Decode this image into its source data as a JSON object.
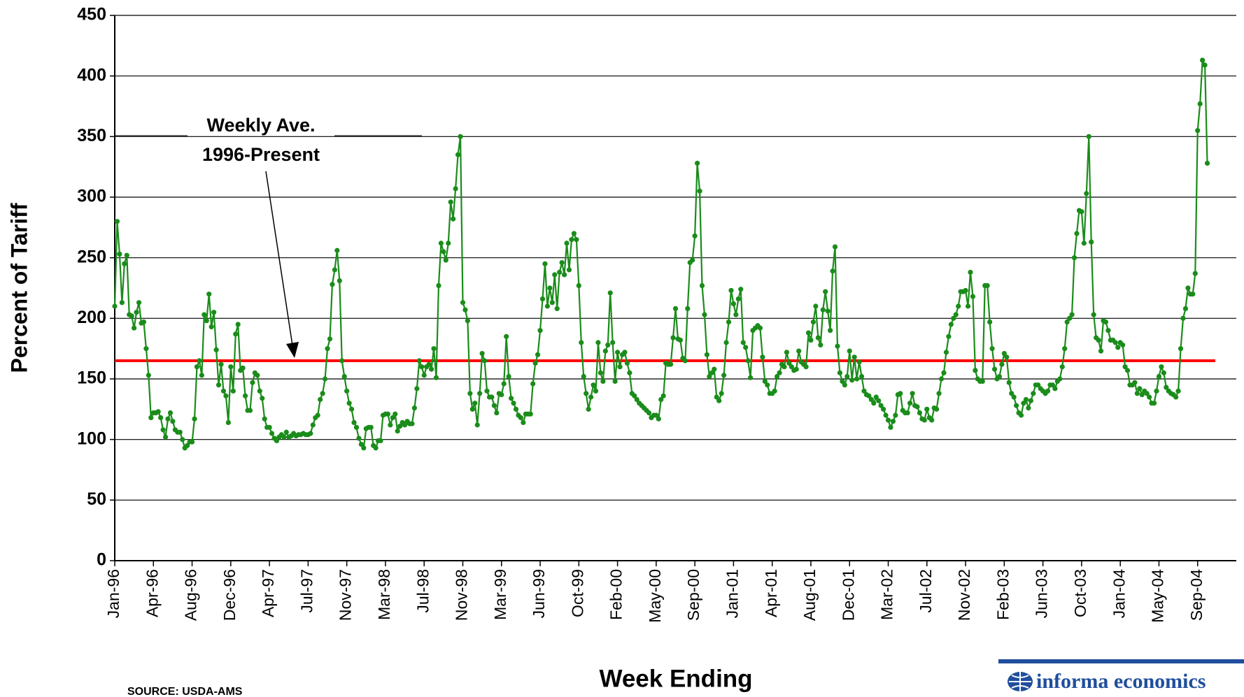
{
  "chart_data": {
    "type": "line",
    "y_label": "Percent of Tariff",
    "x_label": "Week Ending",
    "source": "SOURCE:  USDA-AMS",
    "logo": "informa economics",
    "annotation": [
      "Weekly Ave.",
      "1996-Present"
    ],
    "average": {
      "value": 165,
      "color": "#ff0000"
    },
    "ylim": [
      0,
      450
    ],
    "yticks": [
      0,
      50,
      100,
      150,
      200,
      250,
      300,
      350,
      400,
      450
    ],
    "grid": true,
    "categories": [
      "Jan-96",
      null,
      null,
      null,
      null,
      null,
      null,
      null,
      null,
      null,
      null,
      null,
      null,
      null,
      null,
      null,
      "Apr-96",
      null,
      null,
      null,
      null,
      null,
      null,
      null,
      null,
      null,
      null,
      null,
      null,
      null,
      null,
      null,
      "Aug-96",
      null,
      null,
      null,
      null,
      null,
      null,
      null,
      null,
      null,
      null,
      null,
      null,
      null,
      null,
      null,
      "Dec-96",
      null,
      null,
      null,
      null,
      null,
      null,
      null,
      null,
      null,
      null,
      null,
      null,
      null,
      null,
      null,
      "Apr-97",
      null,
      null,
      null,
      null,
      null,
      null,
      null,
      null,
      null,
      null,
      null,
      null,
      null,
      null,
      null,
      "Jul-97",
      null,
      null,
      null,
      null,
      null,
      null,
      null,
      null,
      null,
      null,
      null,
      null,
      null,
      null,
      null,
      "Nov-97",
      null,
      null,
      null,
      null,
      null,
      null,
      null,
      null,
      null,
      null,
      null,
      null,
      null,
      null,
      null,
      "Mar-98",
      null,
      null,
      null,
      null,
      null,
      null,
      null,
      null,
      null,
      null,
      null,
      null,
      null,
      null,
      null,
      "Jul-98",
      null,
      null,
      null,
      null,
      null,
      null,
      null,
      null,
      null,
      null,
      null,
      null,
      null,
      null,
      null,
      "Nov-98",
      null,
      null,
      null,
      null,
      null,
      null,
      null,
      null,
      null,
      null,
      null,
      null,
      null,
      null,
      null,
      "Mar-99",
      null,
      null,
      null,
      null,
      null,
      null,
      null,
      null,
      null,
      null,
      null,
      null,
      null,
      null,
      null,
      "Jun-99",
      null,
      null,
      null,
      null,
      null,
      null,
      null,
      null,
      null,
      null,
      null,
      null,
      null,
      null,
      null,
      "Oct-99",
      null,
      null,
      null,
      null,
      null,
      null,
      null,
      null,
      null,
      null,
      null,
      null,
      null,
      null,
      null,
      "Feb-00",
      null,
      null,
      null,
      null,
      null,
      null,
      null,
      null,
      null,
      null,
      null,
      null,
      null,
      null,
      null,
      "May-00",
      null,
      null,
      null,
      null,
      null,
      null,
      null,
      null,
      null,
      null,
      null,
      null,
      null,
      null,
      null,
      "Sep-00",
      null,
      null,
      null,
      null,
      null,
      null,
      null,
      null,
      null,
      null,
      null,
      null,
      null,
      null,
      null,
      "Jan-01",
      null,
      null,
      null,
      null,
      null,
      null,
      null,
      null,
      null,
      null,
      null,
      null,
      null,
      null,
      null,
      "Apr-01",
      null,
      null,
      null,
      null,
      null,
      null,
      null,
      null,
      null,
      null,
      null,
      null,
      null,
      null,
      null,
      "Aug-01",
      null,
      null,
      null,
      null,
      null,
      null,
      null,
      null,
      null,
      null,
      null,
      null,
      null,
      null,
      null,
      "Dec-01",
      null,
      null,
      null,
      null,
      null,
      null,
      null,
      null,
      null,
      null,
      null,
      null,
      null,
      null,
      null,
      "Mar-02",
      null,
      null,
      null,
      null,
      null,
      null,
      null,
      null,
      null,
      null,
      null,
      null,
      null,
      null,
      null,
      "Jul-02",
      null,
      null,
      null,
      null,
      null,
      null,
      null,
      null,
      null,
      null,
      null,
      null,
      null,
      null,
      null,
      "Nov-02",
      null,
      null,
      null,
      null,
      null,
      null,
      null,
      null,
      null,
      null,
      null,
      null,
      null,
      null,
      null,
      "Feb-03",
      null,
      null,
      null,
      null,
      null,
      null,
      null,
      null,
      null,
      null,
      null,
      null,
      null,
      null,
      null,
      "Jun-03",
      null,
      null,
      null,
      null,
      null,
      null,
      null,
      null,
      null,
      null,
      null,
      null,
      null,
      null,
      null,
      "Oct-03",
      null,
      null,
      null,
      null,
      null,
      null,
      null,
      null,
      null,
      null,
      null,
      null,
      null,
      null,
      null,
      "Jan-04",
      null,
      null,
      null,
      null,
      null,
      null,
      null,
      null,
      null,
      null,
      null,
      null,
      null,
      null,
      null,
      "May-04",
      null,
      null,
      null,
      null,
      null,
      null,
      null,
      null,
      null,
      null,
      null,
      null,
      null,
      null,
      null,
      "Sep-04",
      null,
      null,
      null,
      null,
      null,
      null,
      null,
      null,
      null,
      null,
      null,
      null,
      null,
      null,
      null
    ],
    "series": [
      {
        "color": "#1a8c1a",
        "values": [
          210,
          280,
          253,
          213,
          245,
          252,
          203,
          202,
          192,
          205,
          213,
          196,
          197,
          175,
          153,
          118,
          122,
          122,
          123,
          118,
          108,
          102,
          117,
          122,
          115,
          108,
          106,
          106,
          100,
          93,
          95,
          98,
          98,
          117,
          160,
          165,
          153,
          203,
          198,
          220,
          193,
          205,
          174,
          145,
          162,
          140,
          136,
          114,
          160,
          140,
          187,
          195,
          157,
          159,
          136,
          124,
          124,
          147,
          155,
          153,
          140,
          134,
          117,
          110,
          110,
          105,
          101,
          99,
          102,
          104,
          102,
          106,
          102,
          103,
          105,
          103,
          104,
          104,
          105,
          104,
          104,
          105,
          112,
          118,
          120,
          133,
          138,
          150,
          175,
          183,
          228,
          240,
          256,
          231,
          165,
          152,
          140,
          130,
          125,
          114,
          110,
          101,
          96,
          93,
          109,
          110,
          110,
          95,
          93,
          99,
          99,
          120,
          121,
          121,
          112,
          118,
          121,
          107,
          111,
          114,
          112,
          115,
          113,
          113,
          126,
          142,
          165,
          160,
          153,
          160,
          162,
          158,
          175,
          151,
          227,
          262,
          255,
          248,
          262,
          296,
          282,
          307,
          335,
          350,
          213,
          207,
          198,
          138,
          125,
          130,
          112,
          138,
          171,
          165,
          140,
          135,
          135,
          128,
          122,
          138,
          137,
          146,
          185,
          152,
          134,
          130,
          125,
          120,
          118,
          114,
          121,
          121,
          121,
          146,
          163,
          170,
          190,
          216,
          245,
          210,
          225,
          213,
          236,
          208,
          238,
          246,
          236,
          262,
          240,
          265,
          270,
          265,
          227,
          180,
          152,
          138,
          125,
          135,
          145,
          140,
          180,
          155,
          148,
          173,
          178,
          221,
          180,
          148,
          172,
          160,
          170,
          172,
          163,
          155,
          138,
          136,
          133,
          130,
          128,
          126,
          124,
          122,
          118,
          120,
          120,
          117,
          133,
          136,
          163,
          162,
          162,
          184,
          208,
          183,
          182,
          167,
          165,
          208,
          246,
          248,
          268,
          328,
          305,
          227,
          203,
          170,
          152,
          155,
          158,
          135,
          132,
          138,
          153,
          180,
          197,
          223,
          212,
          203,
          216,
          224,
          180,
          176,
          165,
          151,
          190,
          192,
          194,
          192,
          168,
          148,
          145,
          138,
          138,
          140,
          152,
          155,
          162,
          160,
          172,
          163,
          160,
          157,
          158,
          173,
          164,
          162,
          160,
          188,
          182,
          197,
          210,
          184,
          178,
          207,
          222,
          206,
          190,
          239,
          259,
          177,
          155,
          148,
          145,
          152,
          173,
          149,
          168,
          150,
          164,
          152,
          140,
          137,
          136,
          133,
          130,
          135,
          132,
          128,
          125,
          120,
          116,
          110,
          115,
          120,
          137,
          138,
          124,
          122,
          122,
          130,
          138,
          128,
          127,
          122,
          117,
          116,
          125,
          118,
          116,
          126,
          125,
          138,
          150,
          155,
          172,
          185,
          195,
          200,
          203,
          210,
          222,
          222,
          223,
          210,
          238,
          218,
          157,
          150,
          148,
          148,
          227,
          227,
          197,
          175,
          158,
          150,
          152,
          162,
          171,
          168,
          147,
          138,
          135,
          128,
          122,
          120,
          130,
          133,
          126,
          132,
          138,
          145,
          145,
          142,
          140,
          138,
          140,
          145,
          145,
          142,
          148,
          150,
          160,
          175,
          197,
          200,
          203,
          250,
          270,
          289,
          288,
          262,
          303,
          350,
          263,
          203,
          184,
          182,
          173,
          198,
          197,
          190,
          182,
          182,
          180,
          176,
          180,
          178,
          160,
          157,
          145,
          145,
          147,
          138,
          142,
          137,
          140,
          138,
          135,
          130,
          130,
          140,
          152,
          160,
          155,
          143,
          140,
          138,
          137,
          135,
          140,
          175,
          200,
          208,
          225,
          220,
          220,
          237,
          355,
          377,
          413,
          409,
          328,
          null,
          null,
          null,
          null,
          null,
          null,
          null,
          null,
          null,
          null,
          null
        ]
      }
    ]
  }
}
